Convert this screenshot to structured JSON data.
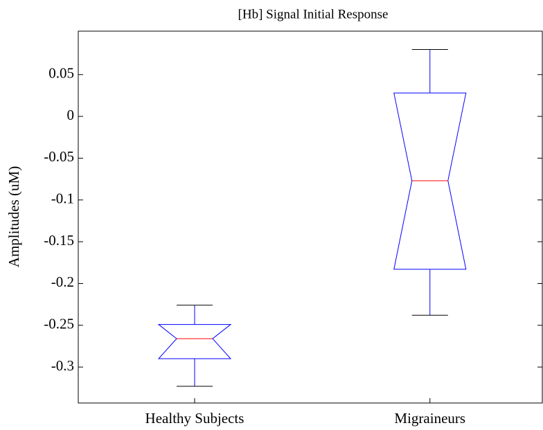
{
  "chart_data": {
    "type": "boxplot",
    "title": "[Hb] Signal Initial Response",
    "ylabel": "Amplitudes (uM)",
    "categories": [
      "Healthy Subjects",
      "Migraineurs"
    ],
    "boxes": [
      {
        "whisker_low": -0.323,
        "q1": -0.29,
        "notch_low": -0.29,
        "median": -0.266,
        "notch_high": -0.249,
        "q3": -0.249,
        "whisker_high": -0.226
      },
      {
        "whisker_low": -0.238,
        "q1": -0.183,
        "notch_low": -0.183,
        "median": -0.077,
        "notch_high": 0.028,
        "q3": 0.028,
        "whisker_high": 0.08
      }
    ],
    "box_color": "#0000ff",
    "median_color": "#ff0000",
    "cap_color": "#000000",
    "ylim": [
      -0.343,
      0.102
    ],
    "yticks": [
      0.05,
      0,
      -0.05,
      -0.1,
      -0.15,
      -0.2,
      -0.25,
      -0.3
    ]
  }
}
